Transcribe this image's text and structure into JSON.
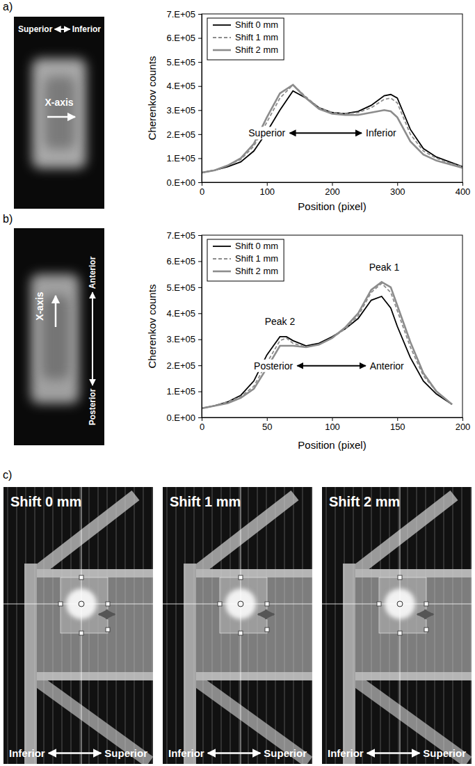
{
  "chart_data": [
    {
      "type": "line",
      "panel_label": "a)",
      "xlabel": "Position (pixel)",
      "ylabel": "Cherenkov counts",
      "x": [
        0,
        20,
        40,
        60,
        80,
        100,
        120,
        140,
        160,
        180,
        200,
        220,
        240,
        260,
        280,
        290,
        300,
        320,
        340,
        360,
        380,
        400
      ],
      "series": [
        {
          "name": "Shift 0 mm",
          "color": "#000000",
          "line_style": "solid",
          "values": [
            40000,
            50000,
            65000,
            85000,
            130000,
            210000,
            300000,
            380000,
            350000,
            310000,
            290000,
            285000,
            295000,
            320000,
            360000,
            365000,
            350000,
            220000,
            140000,
            105000,
            85000,
            65000
          ]
        },
        {
          "name": "Shift 1 mm",
          "color": "#8c8c8c",
          "line_style": "dashed",
          "values": [
            40000,
            50000,
            70000,
            95000,
            150000,
            250000,
            350000,
            405000,
            355000,
            310000,
            290000,
            285000,
            290000,
            310000,
            345000,
            350000,
            330000,
            200000,
            130000,
            100000,
            80000,
            65000
          ]
        },
        {
          "name": "Shift 2 mm",
          "color": "#8c8c8c",
          "line_style": "solid",
          "values": [
            40000,
            50000,
            70000,
            100000,
            160000,
            270000,
            370000,
            405000,
            350000,
            305000,
            285000,
            280000,
            280000,
            290000,
            300000,
            295000,
            270000,
            170000,
            115000,
            90000,
            75000,
            60000
          ]
        }
      ],
      "xlim": [
        0,
        400
      ],
      "xticks": [
        0,
        100,
        200,
        300,
        400
      ],
      "ylim": [
        0,
        700000
      ],
      "yticks": [
        {
          "value": 0,
          "label": "0.E+00"
        },
        {
          "value": 100000,
          "label": "1.E+05"
        },
        {
          "value": 200000,
          "label": "2.E+05"
        },
        {
          "value": 300000,
          "label": "3.E+05"
        },
        {
          "value": 400000,
          "label": "4.E+05"
        },
        {
          "value": 500000,
          "label": "5.E+05"
        },
        {
          "value": 600000,
          "label": "6.E+05"
        },
        {
          "value": 700000,
          "label": "7.E+05"
        }
      ],
      "grid": false,
      "legend": "upper left",
      "direction_labels": [
        {
          "text": "Superior",
          "x": 100,
          "y": 190000
        },
        {
          "text": "Inferior",
          "x": 275,
          "y": 190000
        }
      ],
      "image_labels": [
        "Superior",
        "Inferior",
        "X-axis"
      ]
    },
    {
      "type": "line",
      "panel_label": "b)",
      "xlabel": "Position (pixel)",
      "ylabel": "Cherenkov counts",
      "x": [
        0,
        10,
        20,
        30,
        40,
        50,
        60,
        65,
        70,
        80,
        90,
        100,
        110,
        120,
        130,
        138,
        145,
        150,
        160,
        170,
        180,
        192
      ],
      "series": [
        {
          "name": "Shift 0 mm",
          "color": "#000000",
          "line_style": "solid",
          "values": [
            35000,
            45000,
            60000,
            85000,
            140000,
            240000,
            310000,
            310000,
            295000,
            275000,
            285000,
            310000,
            340000,
            380000,
            450000,
            465000,
            420000,
            350000,
            230000,
            140000,
            90000,
            50000
          ]
        },
        {
          "name": "Shift 1 mm",
          "color": "#8c8c8c",
          "line_style": "dashed",
          "values": [
            35000,
            45000,
            60000,
            80000,
            120000,
            210000,
            295000,
            305000,
            285000,
            270000,
            280000,
            305000,
            340000,
            390000,
            480000,
            515000,
            480000,
            410000,
            270000,
            160000,
            100000,
            50000
          ]
        },
        {
          "name": "Shift 2 mm",
          "color": "#8c8c8c",
          "line_style": "solid",
          "values": [
            35000,
            45000,
            55000,
            75000,
            110000,
            190000,
            275000,
            275000,
            275000,
            270000,
            280000,
            305000,
            345000,
            400000,
            490000,
            520000,
            500000,
            430000,
            290000,
            170000,
            100000,
            50000
          ]
        }
      ],
      "xlim": [
        0,
        200
      ],
      "xticks": [
        0,
        50,
        100,
        150,
        200
      ],
      "ylim": [
        0,
        700000
      ],
      "yticks": [
        {
          "value": 0,
          "label": "0.E+00"
        },
        {
          "value": 100000,
          "label": "1.E+05"
        },
        {
          "value": 200000,
          "label": "2.E+05"
        },
        {
          "value": 300000,
          "label": "3.E+05"
        },
        {
          "value": 400000,
          "label": "4.E+05"
        },
        {
          "value": 500000,
          "label": "5.E+05"
        },
        {
          "value": 600000,
          "label": "6.E+05"
        },
        {
          "value": 700000,
          "label": "7.E+05"
        }
      ],
      "grid": false,
      "legend": "upper left",
      "annotations": [
        {
          "text": "Peak 2",
          "x": 60,
          "y": 355000
        },
        {
          "text": "Peak 1",
          "x": 140,
          "y": 565000
        }
      ],
      "direction_labels": [
        {
          "text": "Posterior",
          "x": 55,
          "y": 185000
        },
        {
          "text": "Anterior",
          "x": 142,
          "y": 185000
        }
      ],
      "image_labels": [
        "X-axis",
        "Anterior",
        "Posterior"
      ]
    }
  ],
  "figure_c": {
    "panel_label": "c)",
    "titles": [
      "Shift 0 mm",
      "Shift 1 mm",
      "Shift 2 mm"
    ],
    "direction_labels": [
      "Inferior",
      "Superior"
    ]
  }
}
